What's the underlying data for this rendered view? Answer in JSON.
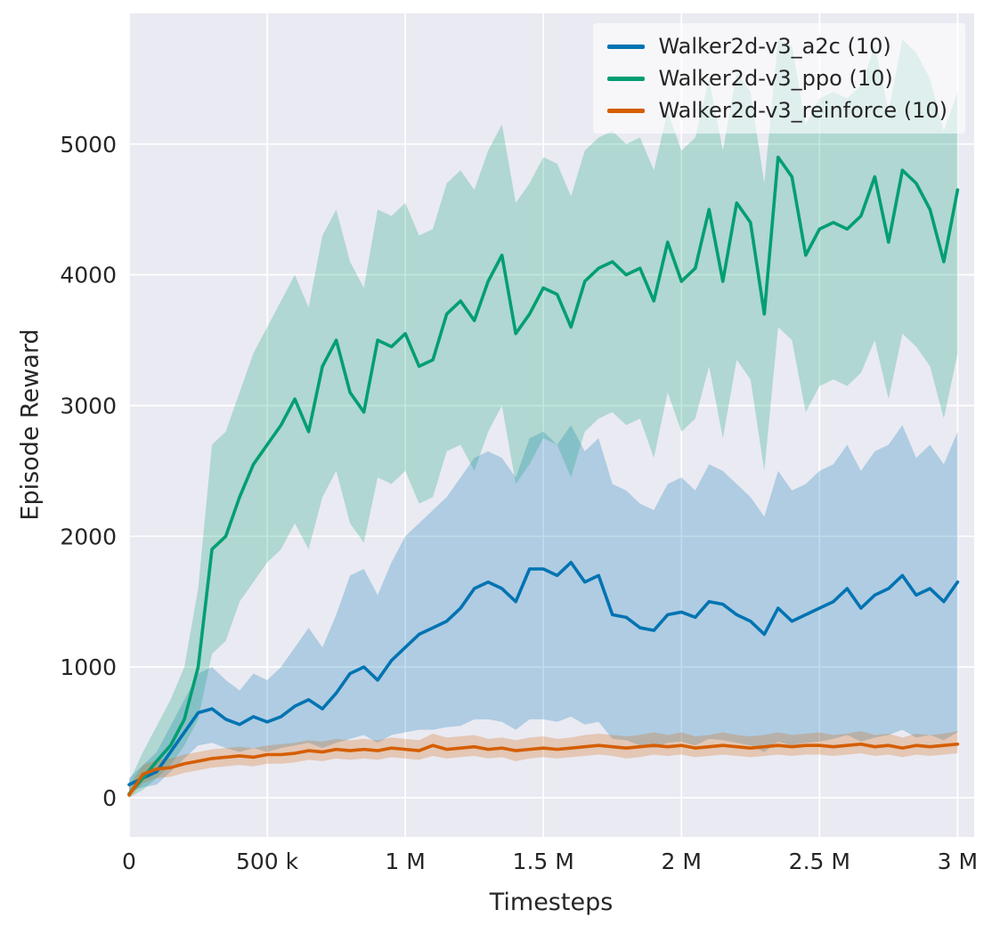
{
  "figure": {
    "background": "#ffffff",
    "plot_background": "#eaeaf2",
    "grid_color": "#ffffff",
    "text_color": "#262626"
  },
  "chart_data": {
    "type": "line",
    "title": "",
    "xlabel": "Timesteps",
    "ylabel": "Episode Reward",
    "xlim": [
      0,
      3060000
    ],
    "ylim": [
      -300,
      6000
    ],
    "grid": true,
    "legend_position": "upper right",
    "xticks": {
      "values": [
        0,
        500000,
        1000000,
        1500000,
        2000000,
        2500000,
        3000000
      ],
      "labels": [
        "0",
        "500 k",
        "1 M",
        "1.5 M",
        "2 M",
        "2.5 M",
        "3 M"
      ]
    },
    "yticks": {
      "values": [
        0,
        1000,
        2000,
        3000,
        4000,
        5000
      ],
      "labels": [
        "0",
        "1000",
        "2000",
        "3000",
        "4000",
        "5000"
      ]
    },
    "x": [
      0,
      50000,
      100000,
      150000,
      200000,
      250000,
      300000,
      350000,
      400000,
      450000,
      500000,
      550000,
      600000,
      650000,
      700000,
      750000,
      800000,
      850000,
      900000,
      950000,
      1000000,
      1050000,
      1100000,
      1150000,
      1200000,
      1250000,
      1300000,
      1350000,
      1400000,
      1450000,
      1500000,
      1550000,
      1600000,
      1650000,
      1700000,
      1750000,
      1800000,
      1850000,
      1900000,
      1950000,
      2000000,
      2050000,
      2100000,
      2150000,
      2200000,
      2250000,
      2300000,
      2350000,
      2400000,
      2450000,
      2500000,
      2550000,
      2600000,
      2650000,
      2700000,
      2750000,
      2800000,
      2850000,
      2900000,
      2950000,
      3000000
    ],
    "series": [
      {
        "name": "Walker2d-v3_a2c (10)",
        "color": "#0173b2",
        "band_alpha": 0.25,
        "mean": [
          100,
          150,
          200,
          350,
          500,
          650,
          680,
          600,
          560,
          620,
          580,
          620,
          700,
          750,
          680,
          800,
          950,
          1000,
          900,
          1050,
          1150,
          1250,
          1300,
          1350,
          1450,
          1600,
          1650,
          1600,
          1500,
          1750,
          1750,
          1700,
          1800,
          1650,
          1700,
          1400,
          1380,
          1300,
          1280,
          1400,
          1420,
          1380,
          1500,
          1480,
          1400,
          1350,
          1250,
          1450,
          1350,
          1400,
          1450,
          1500,
          1600,
          1450,
          1550,
          1600,
          1700,
          1550,
          1600,
          1500,
          1650
        ],
        "lo": [
          50,
          80,
          100,
          200,
          300,
          400,
          420,
          380,
          350,
          380,
          350,
          380,
          400,
          420,
          380,
          420,
          450,
          480,
          420,
          480,
          500,
          520,
          520,
          540,
          550,
          600,
          600,
          580,
          520,
          600,
          600,
          580,
          620,
          560,
          580,
          450,
          440,
          400,
          380,
          420,
          430,
          400,
          450,
          440,
          420,
          400,
          350,
          430,
          400,
          420,
          430,
          450,
          480,
          430,
          460,
          480,
          520,
          460,
          480,
          440,
          500
        ],
        "hi": [
          150,
          250,
          350,
          550,
          750,
          950,
          1000,
          900,
          820,
          950,
          900,
          1000,
          1150,
          1300,
          1150,
          1400,
          1700,
          1750,
          1550,
          1800,
          2000,
          2100,
          2200,
          2300,
          2450,
          2600,
          2650,
          2600,
          2450,
          2750,
          2800,
          2700,
          2850,
          2650,
          2750,
          2400,
          2350,
          2250,
          2200,
          2400,
          2450,
          2350,
          2550,
          2500,
          2400,
          2300,
          2150,
          2500,
          2350,
          2400,
          2500,
          2550,
          2700,
          2500,
          2650,
          2700,
          2850,
          2600,
          2700,
          2550,
          2800
        ]
      },
      {
        "name": "Walker2d-v3_ppo (10)",
        "color": "#029e73",
        "band_alpha": 0.25,
        "mean": [
          30,
          150,
          280,
          400,
          600,
          1000,
          1900,
          2000,
          2300,
          2550,
          2700,
          2850,
          3050,
          2800,
          3300,
          3500,
          3100,
          2950,
          3500,
          3450,
          3550,
          3300,
          3350,
          3700,
          3800,
          3650,
          3950,
          4150,
          3550,
          3700,
          3900,
          3850,
          3600,
          3950,
          4050,
          4100,
          4000,
          4050,
          3800,
          4250,
          3950,
          4050,
          4500,
          3950,
          4550,
          4400,
          3700,
          4900,
          4750,
          4150,
          4350,
          4400,
          4350,
          4450,
          4750,
          4250,
          4800,
          4700,
          4500,
          4100,
          4650
        ],
        "lo": [
          0,
          60,
          150,
          250,
          400,
          600,
          1100,
          1200,
          1500,
          1650,
          1800,
          1900,
          2100,
          1900,
          2300,
          2500,
          2100,
          1950,
          2450,
          2400,
          2500,
          2250,
          2300,
          2650,
          2700,
          2500,
          2800,
          3000,
          2400,
          2550,
          2750,
          2700,
          2450,
          2800,
          2900,
          2950,
          2850,
          2900,
          2600,
          3100,
          2800,
          2900,
          3300,
          2750,
          3350,
          3200,
          2500,
          3600,
          3500,
          2950,
          3150,
          3200,
          3150,
          3250,
          3500,
          3050,
          3550,
          3450,
          3300,
          2900,
          3400
        ],
        "hi": [
          120,
          350,
          550,
          750,
          1000,
          1600,
          2700,
          2800,
          3100,
          3400,
          3600,
          3800,
          4000,
          3750,
          4300,
          4500,
          4100,
          3900,
          4500,
          4450,
          4550,
          4300,
          4350,
          4700,
          4800,
          4650,
          4950,
          5150,
          4550,
          4700,
          4900,
          4850,
          4600,
          4950,
          5050,
          5100,
          5000,
          5050,
          4800,
          5250,
          4950,
          5050,
          5500,
          4950,
          5550,
          5400,
          4700,
          5800,
          5750,
          5150,
          5350,
          5400,
          5350,
          5450,
          5750,
          5250,
          5800,
          5700,
          5500,
          5100,
          5400
        ]
      },
      {
        "name": "Walker2d-v3_reinforce (10)",
        "color": "#d55e00",
        "band_alpha": 0.25,
        "mean": [
          20,
          180,
          220,
          230,
          260,
          280,
          300,
          310,
          320,
          310,
          330,
          330,
          340,
          360,
          350,
          370,
          360,
          370,
          360,
          380,
          370,
          360,
          400,
          370,
          380,
          390,
          370,
          380,
          360,
          370,
          380,
          370,
          380,
          390,
          400,
          390,
          380,
          390,
          400,
          390,
          400,
          380,
          390,
          400,
          390,
          380,
          390,
          400,
          390,
          400,
          400,
          390,
          400,
          410,
          390,
          400,
          380,
          400,
          390,
          400,
          410
        ],
        "lo": [
          0,
          110,
          150,
          160,
          190,
          210,
          230,
          240,
          250,
          240,
          260,
          260,
          270,
          290,
          280,
          300,
          290,
          300,
          290,
          310,
          300,
          290,
          320,
          300,
          310,
          320,
          300,
          310,
          280,
          300,
          310,
          300,
          310,
          320,
          330,
          320,
          300,
          310,
          330,
          320,
          330,
          310,
          320,
          330,
          320,
          310,
          320,
          330,
          320,
          330,
          330,
          320,
          330,
          340,
          320,
          330,
          310,
          330,
          320,
          330,
          340
        ],
        "hi": [
          90,
          250,
          290,
          300,
          330,
          350,
          370,
          380,
          390,
          380,
          400,
          410,
          420,
          440,
          430,
          450,
          440,
          450,
          440,
          460,
          450,
          440,
          490,
          460,
          470,
          480,
          450,
          460,
          440,
          460,
          470,
          450,
          460,
          480,
          490,
          480,
          470,
          480,
          500,
          480,
          500,
          470,
          480,
          500,
          480,
          470,
          480,
          500,
          480,
          490,
          500,
          480,
          490,
          510,
          480,
          490,
          460,
          490,
          480,
          490,
          510
        ]
      }
    ]
  }
}
